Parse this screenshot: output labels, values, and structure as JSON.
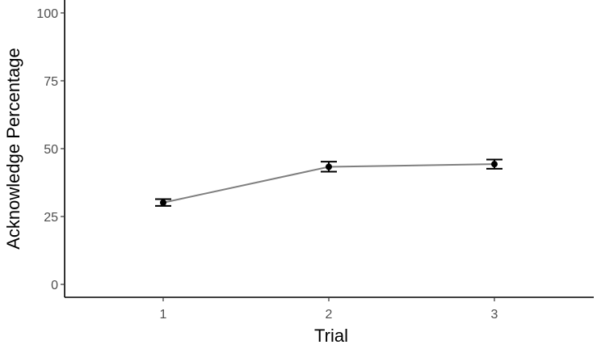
{
  "chart_data": {
    "type": "line",
    "xlabel": "Trial",
    "ylabel": "Acknowledge Percentage",
    "categories": [
      "1",
      "2",
      "3"
    ],
    "series": [
      {
        "values": [
          30.1,
          43.3,
          44.3
        ],
        "error_low": [
          28.9,
          41.5,
          42.6
        ],
        "error_high": [
          31.4,
          45.2,
          46.0
        ]
      }
    ],
    "ylim": [
      -4,
      100
    ],
    "y_ticks": [
      "0",
      "25",
      "50",
      "75",
      "100"
    ],
    "y_tick_values": [
      0,
      25,
      50,
      75,
      100
    ],
    "grid": false,
    "legend": "none",
    "colors": {
      "line": "#7f7f7f",
      "point": "#000000",
      "error_bar": "#000000",
      "axis": "#000000",
      "tick_label": "#4d4d4d"
    }
  }
}
